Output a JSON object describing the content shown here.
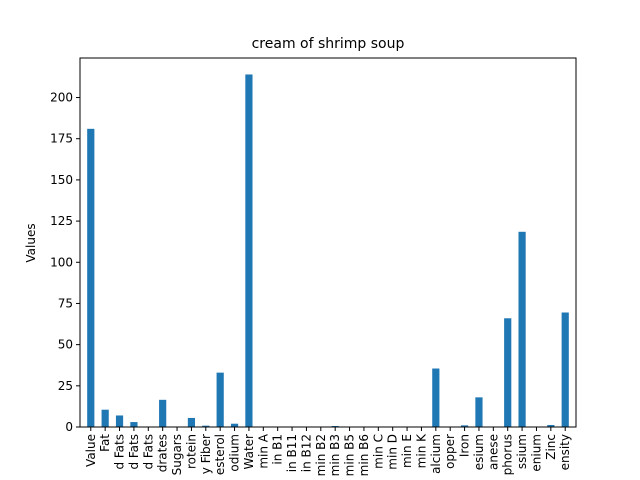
{
  "chart_data": {
    "type": "bar",
    "title": "cream of shrimp soup",
    "xlabel": "",
    "ylabel": "Values",
    "ylim": [
      0,
      224
    ],
    "yticks": [
      0,
      25,
      50,
      75,
      100,
      125,
      150,
      175,
      200
    ],
    "grid": false,
    "bar_color": "#1f77b4",
    "categories": [
      "Value",
      "Fat",
      "d Fats",
      "d Fats",
      "d Fats",
      "drates",
      "Sugars",
      "rotein",
      "y Fiber",
      "esterol",
      "odium",
      "Water",
      "min A",
      "in B1",
      "in B11",
      "in B12",
      "min B2",
      "min B3",
      "min B5",
      "min B6",
      "min C",
      "min D",
      "min E",
      "min K",
      "alcium",
      "opper",
      "Iron",
      "esium",
      "anese",
      "phorus",
      "ssium",
      "enium",
      "Zinc",
      "ensity"
    ],
    "values": [
      181,
      10.5,
      7,
      3,
      0.2,
      16.5,
      0.2,
      5.5,
      0.8,
      33,
      2,
      214,
      0.1,
      0.1,
      0.1,
      0.1,
      0.2,
      0.6,
      0.2,
      0.1,
      0.1,
      0.1,
      0.2,
      0.1,
      35.5,
      0.1,
      1,
      18,
      0.2,
      66,
      118.5,
      0.1,
      1.2,
      69.5
    ]
  }
}
